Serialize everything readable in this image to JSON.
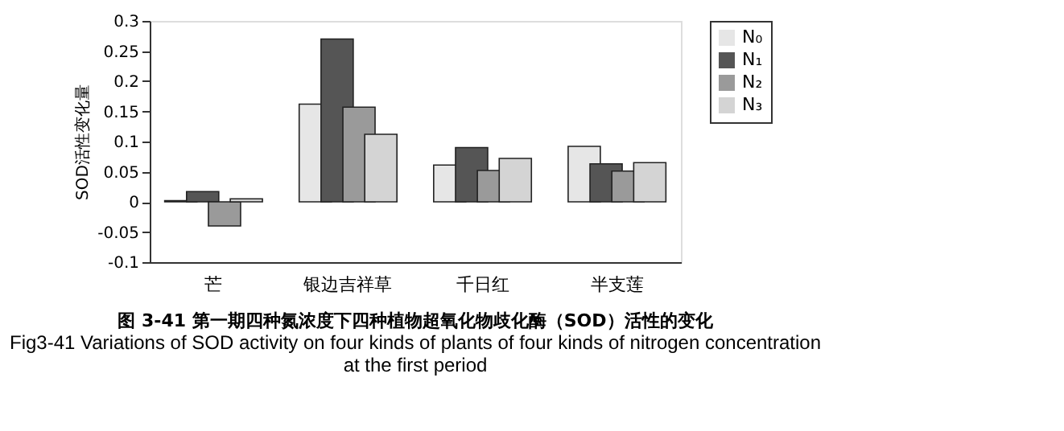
{
  "chart_data": {
    "type": "bar",
    "ylabel": "SOD活性变化量",
    "categories": [
      "芒",
      "银边吉祥草",
      "千日红",
      "半支莲"
    ],
    "series": [
      {
        "name": "N₀",
        "color": "#e6e6e6",
        "values": [
          0.002,
          0.162,
          0.061,
          0.092
        ]
      },
      {
        "name": "N₁",
        "color": "#555555",
        "values": [
          0.017,
          0.27,
          0.09,
          0.063
        ]
      },
      {
        "name": "N₂",
        "color": "#9a9a9a",
        "values": [
          -0.04,
          0.157,
          0.052,
          0.051
        ]
      },
      {
        "name": "N₃",
        "color": "#d4d4d4",
        "values": [
          0.005,
          0.112,
          0.072,
          0.065
        ]
      }
    ],
    "ylim": [
      -0.1,
      0.3
    ],
    "yticks": [
      {
        "value": -0.1,
        "label": "-0.1"
      },
      {
        "value": -0.05,
        "label": "-0.05"
      },
      0,
      {
        "value": 0.05,
        "label": "0.05"
      },
      {
        "value": 0.1,
        "label": "0.1"
      },
      {
        "value": 0.15,
        "label": "0.15"
      },
      {
        "value": 0.2,
        "label": "0.2"
      },
      {
        "value": 0.25,
        "label": "0.25"
      },
      {
        "value": 0.3,
        "label": "0.3"
      }
    ],
    "grid": false,
    "legend": "right",
    "annotations": [
      "图 3-41 第一期四种氮浓度下四种植物超氧化物歧化酶（SOD）活性的变化",
      "Fig3-41 Variations of SOD activity on four kinds of plants of four kinds of nitrogen concentration at the first period"
    ]
  }
}
